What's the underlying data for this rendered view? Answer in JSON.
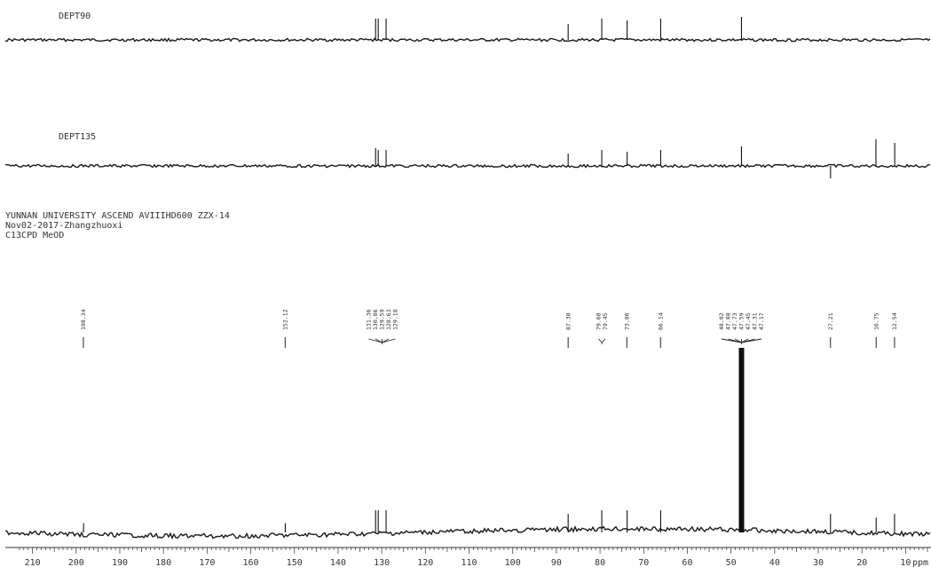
{
  "header": {
    "line1": "YUNNAN UNIVERSITY ASCEND AVIIIHD600 ZZX-14",
    "line2": "Nov02-2017-Zhangzhuoxi",
    "line3": "C13CPD MeOD"
  },
  "chart_data": {
    "type": "line",
    "title": "",
    "xlabel": "ppm",
    "ylabel": "",
    "xlim": [
      215,
      5
    ],
    "x_reversed": true,
    "grid": false,
    "ticks": [
      210,
      200,
      190,
      180,
      170,
      160,
      150,
      140,
      130,
      120,
      110,
      100,
      90,
      80,
      70,
      60,
      50,
      40,
      30,
      20,
      10
    ],
    "spectra": [
      {
        "name": "DEPT90",
        "peaks": [
          {
            "ppm": 131.4,
            "h": 0.6
          },
          {
            "ppm": 130.8,
            "h": 0.6
          },
          {
            "ppm": 129.0,
            "h": 0.6
          },
          {
            "ppm": 87.3,
            "h": 0.45
          },
          {
            "ppm": 79.6,
            "h": 0.6
          },
          {
            "ppm": 73.8,
            "h": 0.55
          },
          {
            "ppm": 66.1,
            "h": 0.6
          },
          {
            "ppm": 47.6,
            "h": 0.65
          }
        ]
      },
      {
        "name": "DEPT135",
        "peaks": [
          {
            "ppm": 131.4,
            "h": 0.5
          },
          {
            "ppm": 130.8,
            "h": 0.45
          },
          {
            "ppm": 129.0,
            "h": 0.45
          },
          {
            "ppm": 87.3,
            "h": 0.35
          },
          {
            "ppm": 79.6,
            "h": 0.45
          },
          {
            "ppm": 73.8,
            "h": 0.4
          },
          {
            "ppm": 66.1,
            "h": 0.45
          },
          {
            "ppm": 47.6,
            "h": 0.55
          },
          {
            "ppm": 27.2,
            "h": -0.35
          },
          {
            "ppm": 16.8,
            "h": 0.75
          },
          {
            "ppm": 12.5,
            "h": 0.65
          }
        ]
      },
      {
        "name": "C13CPD",
        "peaks": [
          {
            "ppm": 198.3,
            "h": 0.05
          },
          {
            "ppm": 152.1,
            "h": 0.05
          },
          {
            "ppm": 131.4,
            "h": 0.12
          },
          {
            "ppm": 130.8,
            "h": 0.12
          },
          {
            "ppm": 129.0,
            "h": 0.12
          },
          {
            "ppm": 87.3,
            "h": 0.1
          },
          {
            "ppm": 79.6,
            "h": 0.12
          },
          {
            "ppm": 73.8,
            "h": 0.12
          },
          {
            "ppm": 66.1,
            "h": 0.12
          },
          {
            "ppm": 48.02,
            "h": 1.0
          },
          {
            "ppm": 47.88,
            "h": 1.0
          },
          {
            "ppm": 47.73,
            "h": 1.0
          },
          {
            "ppm": 47.59,
            "h": 1.0
          },
          {
            "ppm": 47.45,
            "h": 1.0
          },
          {
            "ppm": 47.31,
            "h": 1.0
          },
          {
            "ppm": 47.17,
            "h": 1.0
          },
          {
            "ppm": 27.21,
            "h": 0.1
          },
          {
            "ppm": 16.75,
            "h": 0.08
          },
          {
            "ppm": 12.54,
            "h": 0.1
          }
        ]
      }
    ],
    "peak_labels": [
      {
        "ppm": 198.34,
        "text": "198.34"
      },
      {
        "ppm": 152.12,
        "text": "152.12"
      },
      {
        "ppm": 131.36,
        "text": "131.36"
      },
      {
        "ppm": 130.86,
        "text": "130.86"
      },
      {
        "ppm": 129.59,
        "text": "129.59"
      },
      {
        "ppm": 128.63,
        "text": "128.63"
      },
      {
        "ppm": 129.18,
        "text": "129.18"
      },
      {
        "ppm": 87.3,
        "text": "87.30"
      },
      {
        "ppm": 79.68,
        "text": "79.68"
      },
      {
        "ppm": 79.45,
        "text": "79.45"
      },
      {
        "ppm": 73.86,
        "text": "73.86"
      },
      {
        "ppm": 66.14,
        "text": "66.14"
      },
      {
        "ppm": 48.02,
        "text": "48.02"
      },
      {
        "ppm": 47.88,
        "text": "47.88"
      },
      {
        "ppm": 47.73,
        "text": "47.73"
      },
      {
        "ppm": 47.59,
        "text": "47.59"
      },
      {
        "ppm": 47.45,
        "text": "47.45"
      },
      {
        "ppm": 47.31,
        "text": "47.31"
      },
      {
        "ppm": 47.17,
        "text": "47.17"
      },
      {
        "ppm": 27.21,
        "text": "27.21"
      },
      {
        "ppm": 16.75,
        "text": "16.75"
      },
      {
        "ppm": 12.54,
        "text": "12.54"
      }
    ]
  }
}
